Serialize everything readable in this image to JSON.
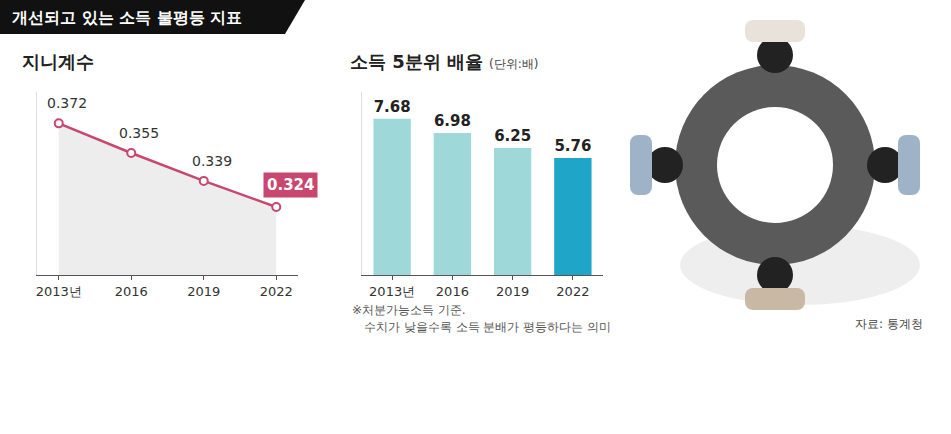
{
  "header": {
    "title": "개선되고 있는 소득 불평등 지표"
  },
  "chart_data": [
    {
      "type": "line",
      "title": "지니계수",
      "categories": [
        "2013년",
        "2016",
        "2019",
        "2022"
      ],
      "values": [
        0.372,
        0.355,
        0.339,
        0.324
      ],
      "color": "#c8476f",
      "marker": "circle",
      "ylim": [
        0.285,
        0.39
      ],
      "data_labels": true,
      "tick_labels": "x",
      "grid": false
    },
    {
      "type": "bar",
      "title": "소득 5분위 배율",
      "unit": "(단위:배)",
      "categories": [
        "2013년",
        "2016",
        "2019",
        "2022"
      ],
      "values": [
        7.68,
        6.98,
        6.25,
        5.76
      ],
      "colors": [
        "#9fd8d8",
        "#9fd8d8",
        "#9fd8d8",
        "#1ea5c8"
      ],
      "ylim": [
        0,
        9
      ],
      "data_labels": true,
      "tick_labels": "x",
      "grid": false
    }
  ],
  "notes": [
    "※처분가능소득 기준.",
    "수치가 낮을수록 소득 분배가 평등하다는 의미"
  ],
  "source": "자료: 통계청"
}
